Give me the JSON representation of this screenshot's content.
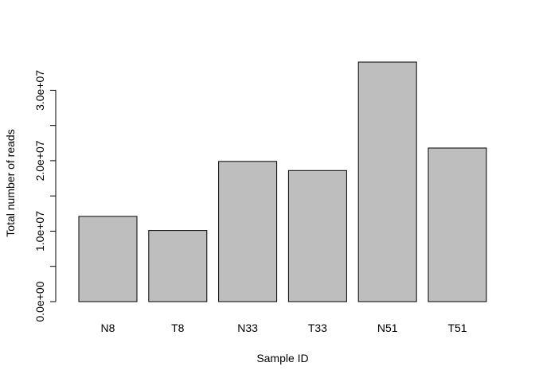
{
  "chart_data": {
    "type": "bar",
    "title": "",
    "xlabel": "Sample ID",
    "ylabel": "Total number of reads",
    "categories": [
      "N8",
      "T8",
      "N33",
      "T33",
      "N51",
      "T51"
    ],
    "values": [
      12100000,
      10100000,
      19900000,
      18600000,
      34000000,
      21800000
    ],
    "ylim": [
      0,
      34000000
    ],
    "yticks": [
      0,
      5000000,
      10000000,
      15000000,
      20000000,
      25000000,
      30000000
    ],
    "ytick_labels": [
      "0.0e+00",
      "",
      "1.0e+07",
      "",
      "2.0e+07",
      "",
      "3.0e+07"
    ],
    "bar_color": "#bebebe",
    "edge_color": "#000000",
    "grid": false,
    "legend": "none"
  }
}
